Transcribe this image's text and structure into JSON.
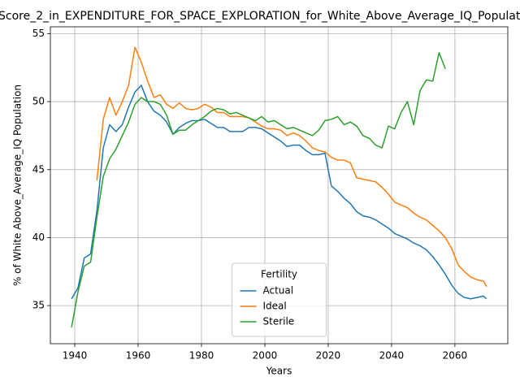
{
  "chart_data": {
    "type": "line",
    "title": "Score_2_in_EXPENDITURE_FOR_SPACE_EXPLORATION_for_White_Above_Average_IQ_Population",
    "xlabel": "Years",
    "ylabel": "% of White Above_Average_IQ Population",
    "x": [
      1939,
      1941,
      1943,
      1945,
      1947,
      1949,
      1951,
      1953,
      1955,
      1957,
      1959,
      1961,
      1963,
      1965,
      1967,
      1969,
      1971,
      1973,
      1975,
      1977,
      1979,
      1981,
      1983,
      1985,
      1987,
      1989,
      1991,
      1993,
      1995,
      1997,
      1999,
      2001,
      2003,
      2005,
      2007,
      2009,
      2011,
      2013,
      2015,
      2017,
      2019,
      2021,
      2023,
      2025,
      2027,
      2029,
      2031,
      2033,
      2035,
      2037,
      2039,
      2041,
      2043,
      2045,
      2047,
      2049,
      2051,
      2053,
      2055,
      2057,
      2059,
      2061,
      2063,
      2065,
      2067,
      2069,
      2070
    ],
    "series": [
      {
        "name": "Actual",
        "color": "#1f77b4",
        "values": [
          35.5,
          36.3,
          38.5,
          38.8,
          42.0,
          46.6,
          48.3,
          47.8,
          48.3,
          49.6,
          50.7,
          51.2,
          50.0,
          49.3,
          49.0,
          48.5,
          47.6,
          48.1,
          48.4,
          48.6,
          48.6,
          48.7,
          48.4,
          48.1,
          48.1,
          47.8,
          47.8,
          47.8,
          48.1,
          48.1,
          48.0,
          47.7,
          47.4,
          47.1,
          46.7,
          46.8,
          46.8,
          46.4,
          46.1,
          46.1,
          46.2,
          43.8,
          43.4,
          42.9,
          42.5,
          41.9,
          41.6,
          41.5,
          41.3,
          41.0,
          40.7,
          40.3,
          40.1,
          39.9,
          39.6,
          39.4,
          39.1,
          38.6,
          38.0,
          37.3,
          36.5,
          35.9,
          35.6,
          35.5,
          35.6,
          35.7,
          35.5
        ]
      },
      {
        "name": "Ideal",
        "color": "#ff7f0e",
        "values": [
          null,
          null,
          null,
          null,
          44.2,
          48.7,
          50.3,
          49.0,
          50.0,
          51.2,
          54.0,
          52.9,
          51.5,
          50.3,
          50.5,
          49.8,
          49.5,
          49.9,
          49.5,
          49.4,
          49.5,
          49.8,
          49.6,
          49.2,
          49.2,
          48.9,
          48.9,
          48.9,
          48.8,
          48.5,
          48.2,
          48.0,
          48.0,
          47.9,
          47.5,
          47.7,
          47.5,
          47.1,
          46.6,
          46.4,
          46.3,
          45.9,
          45.7,
          45.7,
          45.5,
          44.4,
          44.3,
          44.2,
          44.1,
          43.7,
          43.2,
          42.6,
          42.4,
          42.2,
          41.8,
          41.5,
          41.3,
          40.9,
          40.5,
          40.0,
          39.2,
          38.0,
          37.5,
          37.1,
          36.9,
          36.8,
          36.4
        ]
      },
      {
        "name": "Sterile",
        "color": "#2ca02c",
        "values": [
          33.4,
          36.0,
          37.9,
          38.2,
          41.5,
          44.5,
          45.8,
          46.5,
          47.5,
          48.5,
          49.8,
          50.3,
          50.0,
          50.0,
          49.8,
          49.0,
          47.6,
          47.9,
          47.9,
          48.3,
          48.6,
          48.9,
          49.3,
          49.5,
          49.4,
          49.1,
          49.2,
          49.0,
          48.8,
          48.6,
          48.9,
          48.5,
          48.6,
          48.3,
          48.0,
          48.1,
          47.9,
          47.7,
          47.5,
          47.9,
          48.6,
          48.7,
          48.9,
          48.3,
          48.5,
          48.2,
          47.5,
          47.3,
          46.8,
          46.6,
          48.2,
          48.0,
          49.2,
          50.0,
          48.3,
          50.8,
          51.6,
          51.5,
          53.6,
          52.4,
          null,
          null,
          null,
          null,
          null,
          null,
          null
        ]
      }
    ],
    "legend_title": "Fertility",
    "legend": "lower center",
    "xlim": [
      1932.3,
      2076.7
    ],
    "ylim": [
      32.2,
      55.5
    ],
    "xticks": [
      1940,
      1960,
      1980,
      2000,
      2020,
      2040,
      2060
    ],
    "yticks": [
      35,
      40,
      45,
      50,
      55
    ],
    "grid": true
  }
}
